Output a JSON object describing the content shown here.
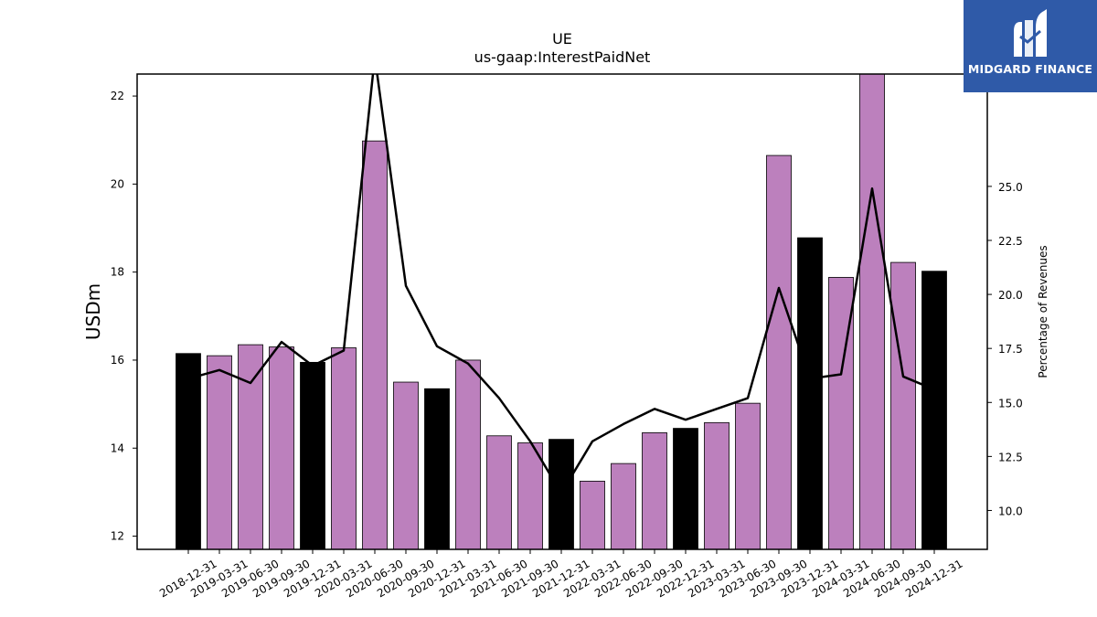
{
  "chart_data": {
    "type": "bar",
    "title": "UE",
    "subtitle": "us-gaap:InterestPaidNet",
    "ylabel": "USDm",
    "ylabel_right": "Percentage of Revenues",
    "ylim": [
      11.7,
      22.5
    ],
    "ylim_right": [
      8.2,
      30.2
    ],
    "yticks": [
      12,
      14,
      16,
      18,
      20,
      22
    ],
    "yticks_right": [
      10.0,
      12.5,
      15.0,
      17.5,
      20.0,
      22.5,
      25.0
    ],
    "categories": [
      "2018-12-31",
      "2019-03-31",
      "2019-06-30",
      "2019-09-30",
      "2019-12-31",
      "2020-03-31",
      "2020-06-30",
      "2020-09-30",
      "2020-12-31",
      "2021-03-31",
      "2021-06-30",
      "2021-09-30",
      "2021-12-31",
      "2022-03-31",
      "2022-06-30",
      "2022-09-30",
      "2022-12-31",
      "2023-03-31",
      "2023-06-30",
      "2023-09-30",
      "2023-12-31",
      "2024-03-31",
      "2024-06-30",
      "2024-09-30",
      "2024-12-31"
    ],
    "values": [
      16.15,
      16.1,
      16.35,
      16.3,
      15.95,
      16.28,
      20.98,
      15.5,
      15.35,
      16.0,
      14.28,
      14.12,
      14.2,
      13.25,
      13.65,
      14.35,
      14.45,
      14.58,
      15.02,
      20.65,
      18.78,
      17.88,
      22.6,
      18.22,
      18.02
    ],
    "bar_colors": [
      "#000000",
      "#bc80bd",
      "#bc80bd",
      "#bc80bd",
      "#000000",
      "#bc80bd",
      "#bc80bd",
      "#bc80bd",
      "#000000",
      "#bc80bd",
      "#bc80bd",
      "#bc80bd",
      "#000000",
      "#bc80bd",
      "#bc80bd",
      "#bc80bd",
      "#000000",
      "#bc80bd",
      "#bc80bd",
      "#bc80bd",
      "#000000",
      "#bc80bd",
      "#bc80bd",
      "#bc80bd",
      "#000000"
    ],
    "line_series": {
      "axis": "right",
      "color": "#000000",
      "values": [
        16.1,
        16.5,
        15.9,
        17.8,
        16.7,
        17.4,
        31.0,
        20.4,
        17.6,
        16.8,
        15.2,
        13.2,
        10.8,
        13.2,
        14.0,
        14.7,
        14.2,
        14.7,
        15.2,
        20.3,
        16.1,
        16.3,
        24.9,
        16.2,
        15.6
      ]
    },
    "grid": false,
    "legend": "none"
  },
  "logo": {
    "text": "MIDGARD FINANCE",
    "background": "#2f5aa8"
  }
}
